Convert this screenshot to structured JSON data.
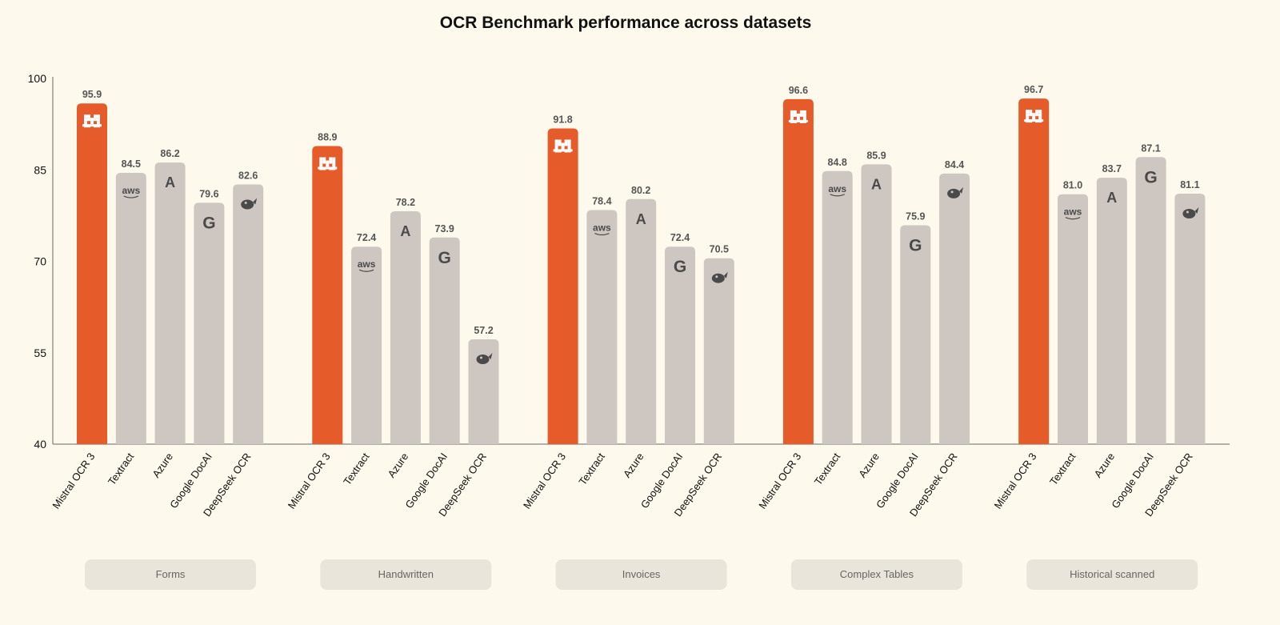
{
  "chart_data": {
    "type": "bar",
    "title": "OCR Benchmark performance across datasets",
    "xlabel": "",
    "ylabel": "",
    "ylim": [
      40,
      100
    ],
    "yticks": [
      40,
      55,
      70,
      85,
      100
    ],
    "grid": false,
    "models": [
      "Mistral OCR 3",
      "Textract",
      "Azure",
      "Google DocAI",
      "DeepSeek OCR"
    ],
    "model_icons": [
      "mistral-icon",
      "aws-icon",
      "azure-icon",
      "google-icon",
      "deepseek-icon"
    ],
    "icon_text": {
      "aws": "aws",
      "azure": "A",
      "google": "G"
    },
    "categories": [
      "Forms",
      "Handwritten",
      "Invoices",
      "Complex Tables",
      "Historical scanned"
    ],
    "series": [
      {
        "name": "Mistral OCR 3",
        "values": [
          95.9,
          88.9,
          91.8,
          96.6,
          96.7
        ]
      },
      {
        "name": "Textract",
        "values": [
          84.5,
          72.4,
          78.4,
          84.8,
          81.0
        ]
      },
      {
        "name": "Azure",
        "values": [
          86.2,
          78.2,
          80.2,
          85.9,
          83.7
        ]
      },
      {
        "name": "Google DocAI",
        "values": [
          79.6,
          73.9,
          72.4,
          75.9,
          87.1
        ]
      },
      {
        "name": "DeepSeek OCR",
        "values": [
          82.6,
          57.2,
          70.5,
          84.4,
          81.1
        ]
      }
    ],
    "colors": {
      "highlight": "#e55b2a",
      "other": "#cdc6c1",
      "background": "#fdf9ec",
      "group_box": "#e9e5da"
    }
  }
}
